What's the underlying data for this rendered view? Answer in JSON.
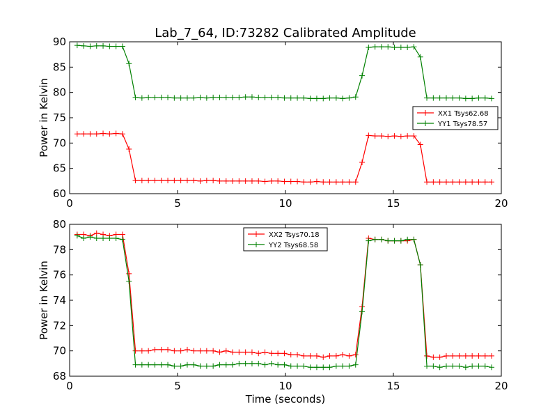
{
  "title": "Lab_7_64, ID:73282 Calibrated Amplitude",
  "chart_data": [
    {
      "type": "line",
      "ylabel": "Power in Kelvin",
      "xlabel": "",
      "xlim": [
        0,
        20
      ],
      "ylim": [
        60,
        90
      ],
      "xticks": [
        0,
        5,
        10,
        15,
        20
      ],
      "yticks": [
        60,
        65,
        70,
        75,
        80,
        85,
        90
      ],
      "legend_position": "center-right",
      "x": [
        0.35,
        0.65,
        0.95,
        1.25,
        1.55,
        1.85,
        2.15,
        2.45,
        2.75,
        3.05,
        3.35,
        3.65,
        3.95,
        4.25,
        4.55,
        4.85,
        5.15,
        5.45,
        5.75,
        6.05,
        6.35,
        6.65,
        6.95,
        7.25,
        7.55,
        7.85,
        8.15,
        8.45,
        8.75,
        9.05,
        9.35,
        9.65,
        9.95,
        10.25,
        10.55,
        10.85,
        11.15,
        11.45,
        11.75,
        12.05,
        12.35,
        12.65,
        12.95,
        13.25,
        13.55,
        13.85,
        14.15,
        14.45,
        14.75,
        15.05,
        15.35,
        15.65,
        15.95,
        16.25,
        16.55,
        16.85,
        17.15,
        17.45,
        17.75,
        18.05,
        18.35,
        18.65,
        18.95,
        19.25,
        19.55
      ],
      "series": [
        {
          "name": "XX1 Tsys62.68",
          "color": "#ff0000",
          "values": [
            71.8,
            71.8,
            71.8,
            71.8,
            71.9,
            71.8,
            71.9,
            71.8,
            68.8,
            62.6,
            62.6,
            62.6,
            62.6,
            62.6,
            62.6,
            62.6,
            62.6,
            62.6,
            62.6,
            62.5,
            62.6,
            62.6,
            62.5,
            62.5,
            62.5,
            62.5,
            62.5,
            62.5,
            62.5,
            62.4,
            62.5,
            62.5,
            62.4,
            62.4,
            62.4,
            62.3,
            62.3,
            62.4,
            62.3,
            62.3,
            62.3,
            62.3,
            62.3,
            62.3,
            66.2,
            71.5,
            71.4,
            71.4,
            71.3,
            71.4,
            71.3,
            71.4,
            71.4,
            69.7,
            62.3,
            62.3,
            62.3,
            62.3,
            62.3,
            62.3,
            62.3,
            62.3,
            62.3,
            62.3,
            62.3
          ]
        },
        {
          "name": "YY1 Tsys78.57",
          "color": "#008000",
          "values": [
            89.3,
            89.2,
            89.1,
            89.2,
            89.2,
            89.1,
            89.1,
            89.1,
            85.7,
            79.0,
            78.9,
            79.0,
            79.0,
            79.0,
            79.0,
            78.9,
            78.9,
            78.9,
            78.9,
            79.0,
            78.9,
            79.0,
            79.0,
            79.0,
            79.0,
            79.0,
            79.1,
            79.1,
            79.0,
            79.0,
            79.0,
            79.0,
            78.9,
            78.9,
            78.9,
            78.9,
            78.8,
            78.8,
            78.8,
            78.9,
            78.9,
            78.8,
            78.9,
            79.1,
            83.3,
            88.9,
            89.0,
            89.0,
            89.0,
            88.9,
            88.9,
            88.9,
            89.0,
            87.0,
            78.9,
            78.9,
            78.9,
            78.9,
            78.9,
            78.9,
            78.8,
            78.8,
            78.9,
            78.9,
            78.8
          ]
        }
      ]
    },
    {
      "type": "line",
      "ylabel": "Power in Kelvin",
      "xlabel": "Time (seconds)",
      "xlim": [
        0,
        20
      ],
      "ylim": [
        68,
        80
      ],
      "xticks": [
        0,
        5,
        10,
        15,
        20
      ],
      "yticks": [
        68,
        70,
        72,
        74,
        76,
        78,
        80
      ],
      "legend_position": "upper-center",
      "x": [
        0.35,
        0.65,
        0.95,
        1.25,
        1.55,
        1.85,
        2.15,
        2.45,
        2.75,
        3.05,
        3.35,
        3.65,
        3.95,
        4.25,
        4.55,
        4.85,
        5.15,
        5.45,
        5.75,
        6.05,
        6.35,
        6.65,
        6.95,
        7.25,
        7.55,
        7.85,
        8.15,
        8.45,
        8.75,
        9.05,
        9.35,
        9.65,
        9.95,
        10.25,
        10.55,
        10.85,
        11.15,
        11.45,
        11.75,
        12.05,
        12.35,
        12.65,
        12.95,
        13.25,
        13.55,
        13.85,
        14.15,
        14.45,
        14.75,
        15.05,
        15.35,
        15.65,
        15.95,
        16.25,
        16.55,
        16.85,
        17.15,
        17.45,
        17.75,
        18.05,
        18.35,
        18.65,
        18.95,
        19.25,
        19.55
      ],
      "series": [
        {
          "name": "XX2 Tsys70.18",
          "color": "#ff0000",
          "values": [
            79.2,
            79.2,
            79.1,
            79.3,
            79.2,
            79.1,
            79.2,
            79.2,
            76.1,
            70.0,
            70.0,
            70.0,
            70.1,
            70.1,
            70.1,
            70.0,
            70.0,
            70.1,
            70.0,
            70.0,
            70.0,
            70.0,
            69.9,
            70.0,
            69.9,
            69.9,
            69.9,
            69.9,
            69.8,
            69.9,
            69.8,
            69.8,
            69.8,
            69.7,
            69.7,
            69.6,
            69.6,
            69.6,
            69.5,
            69.6,
            69.6,
            69.7,
            69.6,
            69.7,
            73.5,
            78.9,
            78.8,
            78.8,
            78.7,
            78.7,
            78.7,
            78.7,
            78.8,
            76.8,
            69.6,
            69.5,
            69.5,
            69.6,
            69.6,
            69.6,
            69.6,
            69.6,
            69.6,
            69.6,
            69.6
          ]
        },
        {
          "name": "YY2 Tsys68.58",
          "color": "#008000",
          "values": [
            79.1,
            78.9,
            79.0,
            78.9,
            78.9,
            78.9,
            78.9,
            78.8,
            75.5,
            68.9,
            68.9,
            68.9,
            68.9,
            68.9,
            68.9,
            68.8,
            68.8,
            68.9,
            68.9,
            68.8,
            68.8,
            68.8,
            68.9,
            68.9,
            68.9,
            69.0,
            69.0,
            69.0,
            69.0,
            68.9,
            69.0,
            68.9,
            68.9,
            68.8,
            68.8,
            68.8,
            68.7,
            68.7,
            68.7,
            68.7,
            68.8,
            68.8,
            68.8,
            68.9,
            73.1,
            78.7,
            78.8,
            78.8,
            78.7,
            78.7,
            78.7,
            78.8,
            78.8,
            76.8,
            68.8,
            68.8,
            68.7,
            68.8,
            68.8,
            68.8,
            68.7,
            68.8,
            68.8,
            68.8,
            68.7
          ]
        }
      ]
    }
  ]
}
